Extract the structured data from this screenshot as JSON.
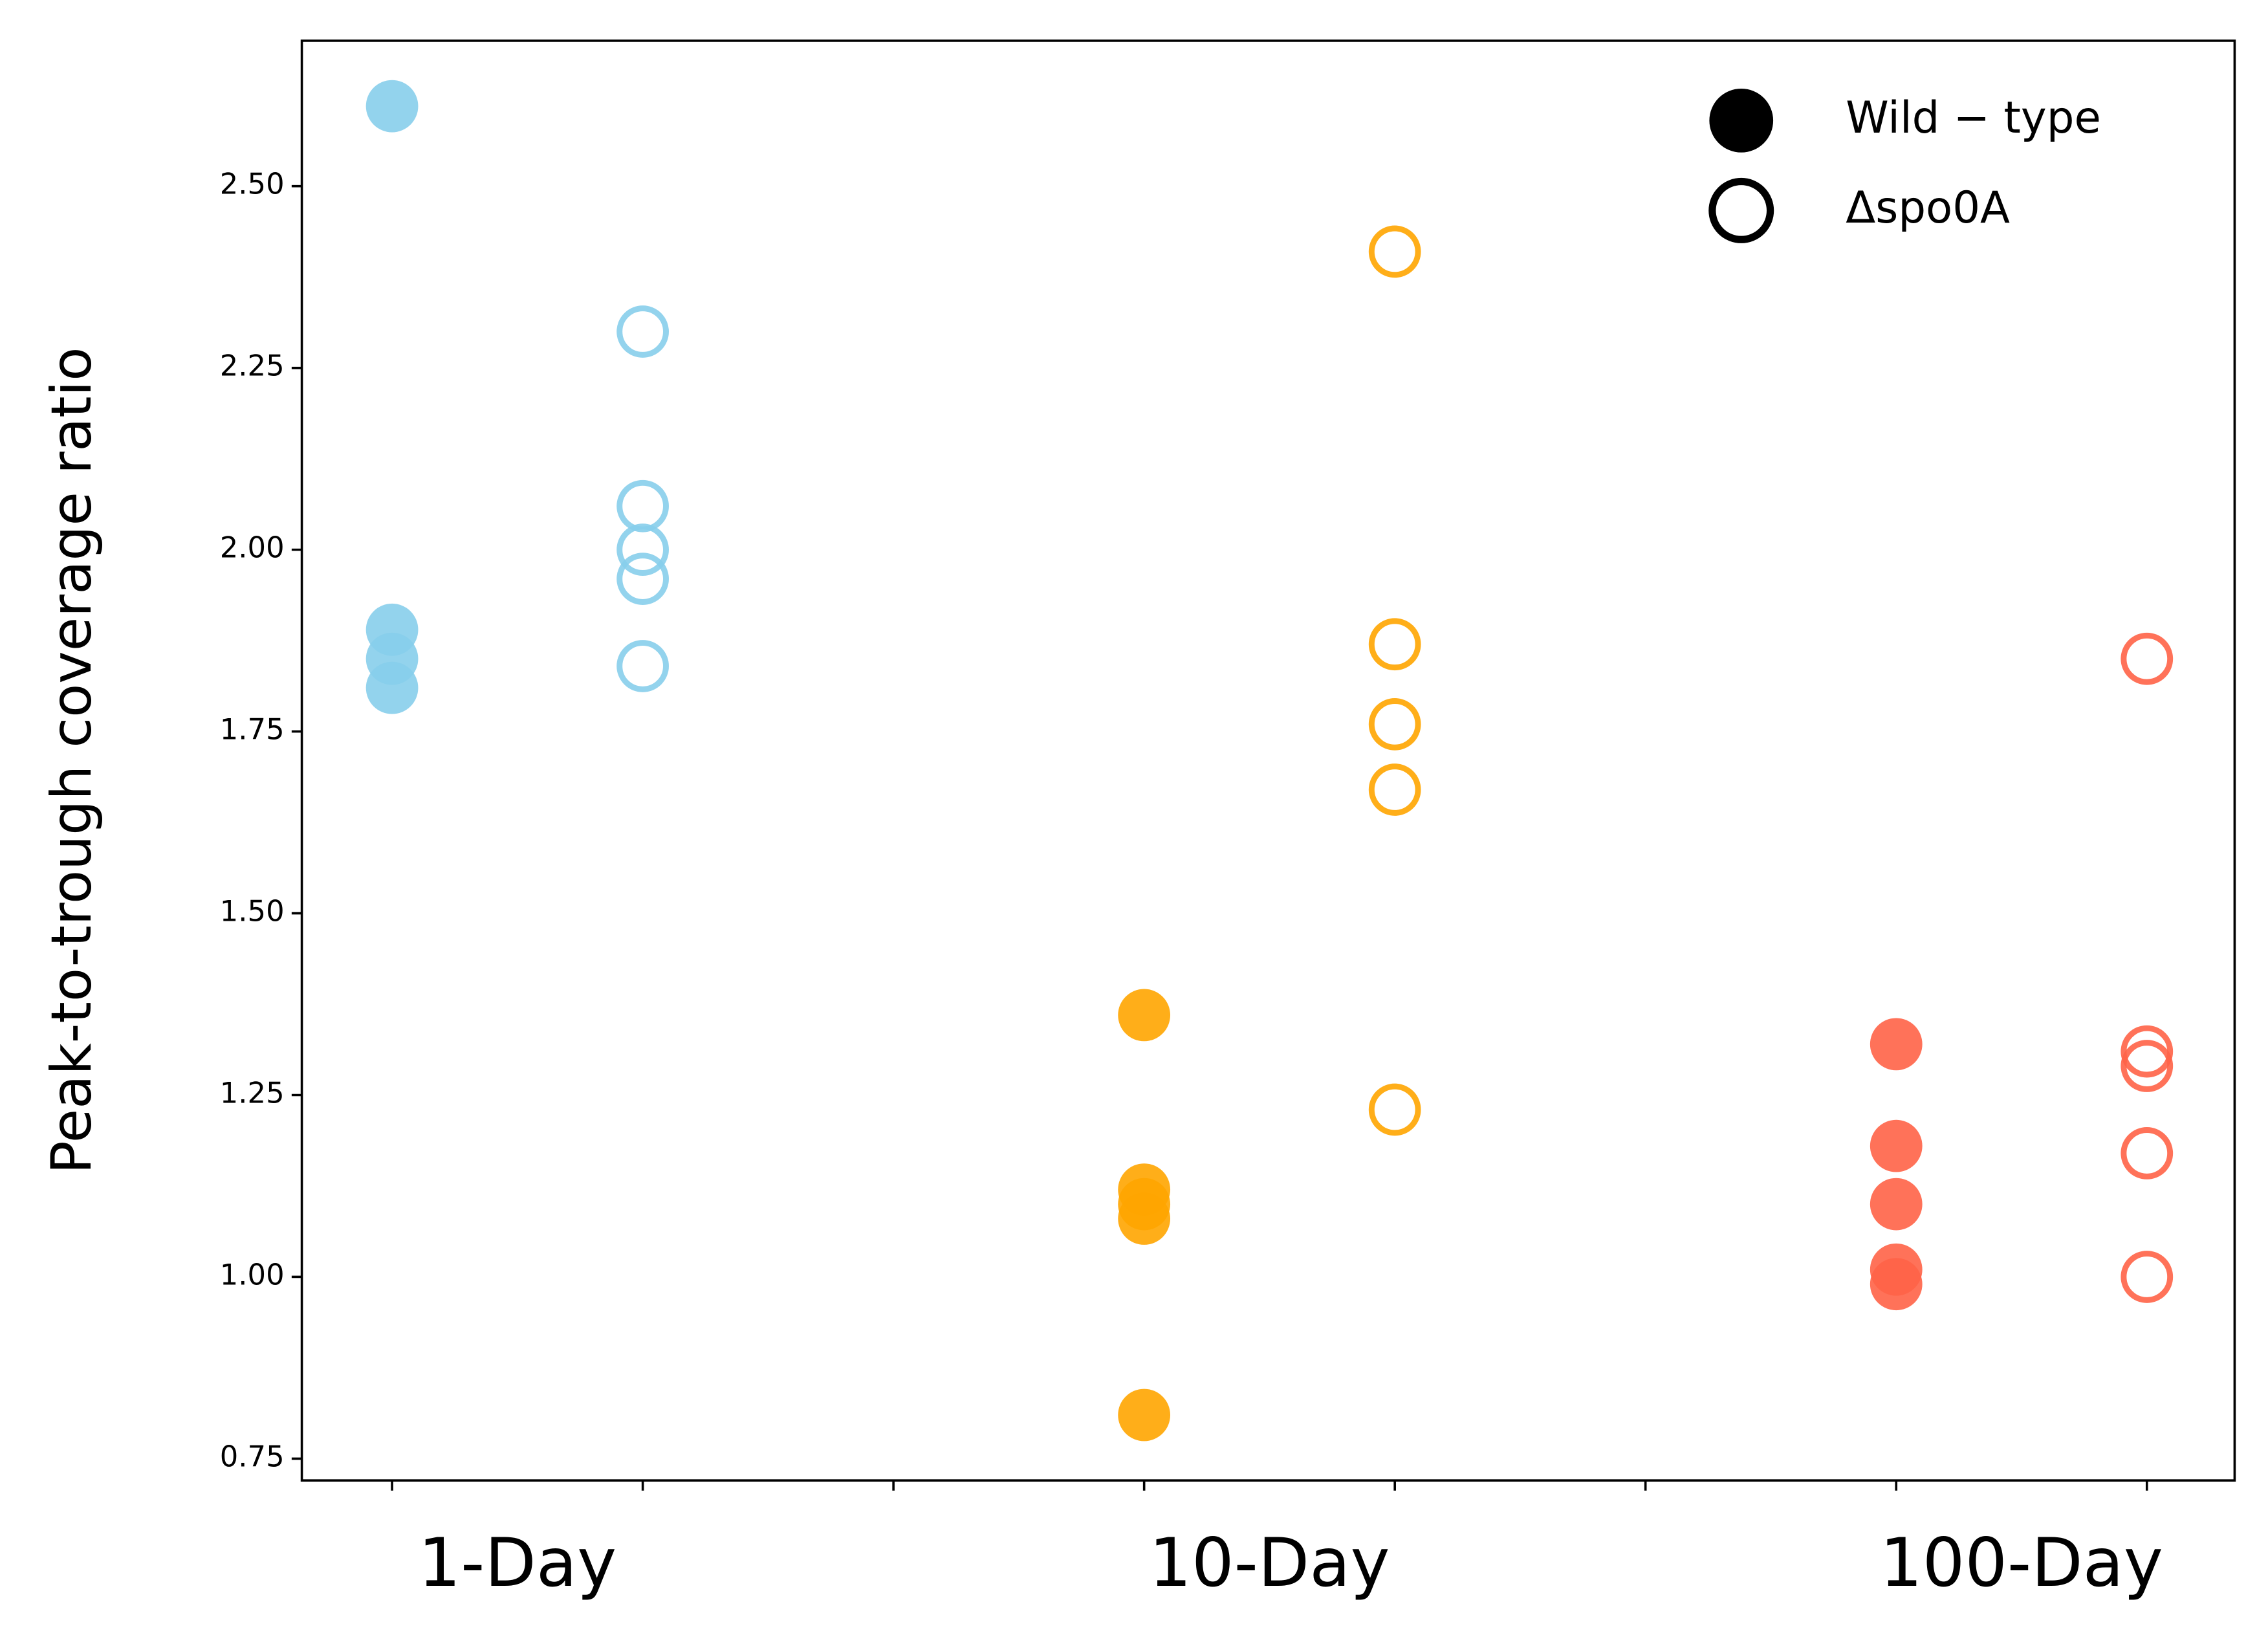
{
  "chart_data": {
    "type": "scatter",
    "ylabel": "Peak-to-trough coverage ratio",
    "xlim": [
      -0.36,
      7.35
    ],
    "xticks": [
      0,
      1,
      2,
      3,
      4,
      5,
      6,
      7
    ],
    "xtick_labels": false,
    "x_group_labels": [
      {
        "value": 0.5,
        "label": "1-Day"
      },
      {
        "value": 3.5,
        "label": "10-Day"
      },
      {
        "value": 6.5,
        "label": "100-Day"
      }
    ],
    "ylim": [
      0.72,
      2.7
    ],
    "yticks": [
      {
        "value": 0.75,
        "label": "0.75"
      },
      {
        "value": 1.0,
        "label": "1.00"
      },
      {
        "value": 1.25,
        "label": "1.25"
      },
      {
        "value": 1.5,
        "label": "1.50"
      },
      {
        "value": 1.75,
        "label": "1.75"
      },
      {
        "value": 2.0,
        "label": "2.00"
      },
      {
        "value": 2.25,
        "label": "2.25"
      },
      {
        "value": 2.5,
        "label": "2.50"
      }
    ],
    "grid": false,
    "legend_position": "upper right",
    "legend": [
      {
        "label": "Wild − type",
        "marker": "filled",
        "color": "#000000"
      },
      {
        "label": "Δspo0A",
        "marker": "hollow",
        "color": "#000000"
      }
    ],
    "series": [
      {
        "color": "#87CEEB",
        "marker": "filled",
        "x": [
          0,
          0,
          0,
          0
        ],
        "values": [
          2.61,
          1.89,
          1.85,
          1.81
        ]
      },
      {
        "color": "#87CEEB",
        "marker": "hollow",
        "x": [
          1,
          1,
          1,
          1,
          1
        ],
        "values": [
          2.3,
          2.06,
          2.0,
          1.96,
          1.84
        ]
      },
      {
        "color": "#FFA500",
        "marker": "filled",
        "x": [
          3,
          3,
          3,
          3,
          3
        ],
        "values": [
          1.36,
          1.12,
          1.1,
          1.08,
          0.81
        ]
      },
      {
        "color": "#FFA500",
        "marker": "hollow",
        "x": [
          4,
          4,
          4,
          4,
          4
        ],
        "values": [
          2.41,
          1.87,
          1.76,
          1.67,
          1.23
        ]
      },
      {
        "color": "#FF6347",
        "marker": "filled",
        "x": [
          6,
          6,
          6,
          6,
          6
        ],
        "values": [
          1.32,
          1.18,
          1.1,
          1.01,
          0.99
        ]
      },
      {
        "color": "#FF6347",
        "marker": "hollow",
        "x": [
          7,
          7,
          7,
          7,
          7
        ],
        "values": [
          1.85,
          1.31,
          1.29,
          1.17,
          1.0
        ]
      }
    ]
  }
}
